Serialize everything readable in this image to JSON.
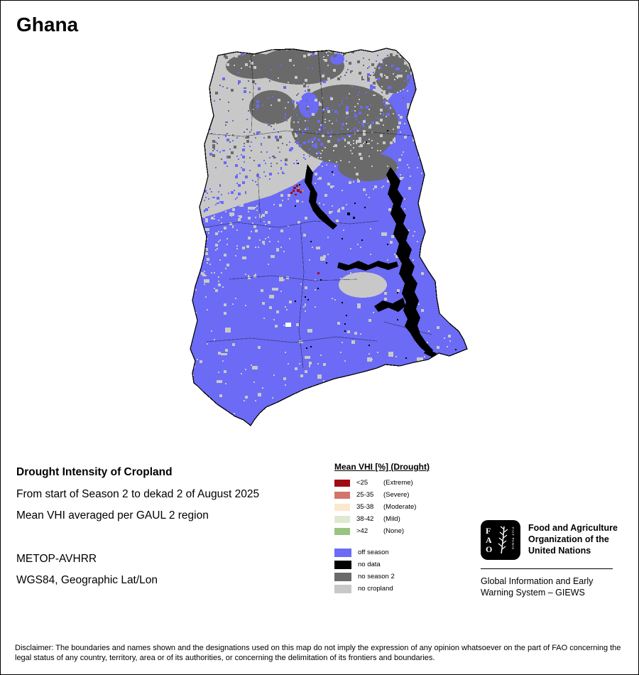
{
  "title": "Ghana",
  "info": {
    "heading": "Drought Intensity of Cropland",
    "period": "From start of Season 2 to dekad 2 of August 2025",
    "method": "Mean VHI averaged per GAUL 2 region",
    "sensor": "METOP-AVHRR",
    "projection": "WGS84, Geographic Lat/Lon"
  },
  "legend": {
    "title": "Mean VHI [%] (Drought)",
    "drought_classes": [
      {
        "range": "<25",
        "qualifier": "(Extreme)",
        "color": "#a00c14"
      },
      {
        "range": "25-35",
        "qualifier": "(Severe)",
        "color": "#d4756b"
      },
      {
        "range": "35-38",
        "qualifier": "(Moderate)",
        "color": "#fce8cd"
      },
      {
        "range": "38-42",
        "qualifier": "(Mild)",
        "color": "#dcead2"
      },
      {
        "range": ">42",
        "qualifier": "(None)",
        "color": "#97c47e"
      }
    ],
    "season_classes": [
      {
        "label": "off season",
        "color": "#6b6bf5"
      },
      {
        "label": "no data",
        "color": "#000000"
      },
      {
        "label": "no season 2",
        "color": "#6a6a6a"
      },
      {
        "label": "no cropland",
        "color": "#c8c8c8"
      }
    ]
  },
  "map": {
    "colors": {
      "off_season": "#6b6bf5",
      "no_data": "#000000",
      "no_season_2": "#6a6a6a",
      "no_cropland": "#c8c8c8",
      "extreme": "#a00c14",
      "severe": "#d4756b",
      "gap_white": "#ffffff"
    }
  },
  "fao": {
    "letters": [
      "F",
      "A",
      "O"
    ],
    "motto": "FIAT PANIS",
    "org": "Food and Agriculture Organization of the United Nations",
    "giews": "Global Information and Early Warning System – GIEWS"
  },
  "disclaimer": "Disclaimer: The boundaries and names shown and the designations used on this map do not imply the expression of any opinion whatsoever on the part of FAO concerning the legal status of any country, territory, area or of its authorities, or concerning the delimitation of its frontiers and boundaries."
}
